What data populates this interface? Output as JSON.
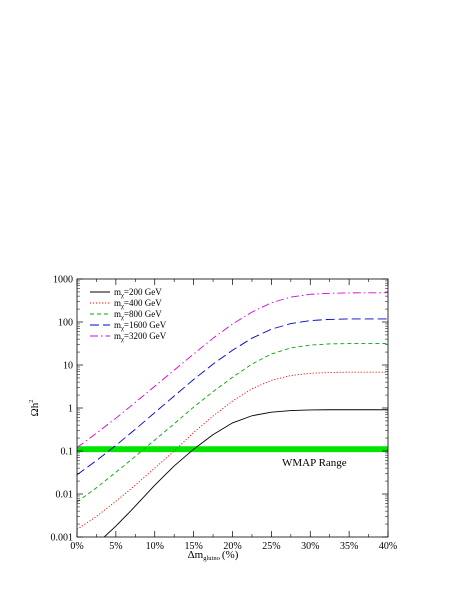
{
  "chart_data": {
    "type": "line",
    "xlabel": "Δm",
    "xlabel_subscript": "gluino",
    "xlabel_unit": "(%)",
    "ylabel": "Ωh",
    "ylabel_superscript": "2",
    "y_scale": "log",
    "xlim": [
      0,
      40
    ],
    "ylim": [
      0.001,
      1000
    ],
    "x_ticks": [
      0,
      5,
      10,
      15,
      20,
      25,
      30,
      35,
      40
    ],
    "x_tick_labels": [
      "0%",
      "5%",
      "10%",
      "15%",
      "20%",
      "25%",
      "30%",
      "35%",
      "40%"
    ],
    "y_ticks": [
      0.001,
      0.01,
      0.1,
      1,
      10,
      100,
      1000
    ],
    "y_tick_labels": [
      "0.001",
      "0.01",
      "0.1",
      "1",
      "10",
      "100",
      "1000"
    ],
    "grid": false,
    "legend_position": "top-left",
    "band": {
      "label": "WMAP Range",
      "ymin": 0.094,
      "ymax": 0.129,
      "color": "#00e600"
    },
    "series": [
      {
        "name": "m",
        "sub": "χ",
        "suffix": "=200 GeV",
        "color": "#000000",
        "dash": "solid",
        "x": [
          3.5,
          5,
          7,
          10,
          12.5,
          15,
          17.5,
          20,
          22.5,
          25,
          27.5,
          30,
          32.5,
          35,
          40
        ],
        "y": [
          0.001,
          0.0018,
          0.0042,
          0.016,
          0.045,
          0.11,
          0.24,
          0.45,
          0.66,
          0.8,
          0.87,
          0.9,
          0.91,
          0.91,
          0.91
        ]
      },
      {
        "name": "m",
        "sub": "χ",
        "suffix": "=400 GeV",
        "color": "#ff0000",
        "dash": "dot",
        "x": [
          0,
          2.5,
          5,
          7.5,
          10,
          12.5,
          15,
          17.5,
          20,
          22.5,
          25,
          27.5,
          30,
          32.5,
          35,
          40
        ],
        "y": [
          0.0015,
          0.003,
          0.0068,
          0.016,
          0.04,
          0.1,
          0.27,
          0.65,
          1.45,
          2.8,
          4.4,
          5.7,
          6.4,
          6.7,
          6.8,
          6.8
        ]
      },
      {
        "name": "m",
        "sub": "χ",
        "suffix": "=800 GeV",
        "color": "#00aa00",
        "dash": "dash",
        "x": [
          0,
          2.5,
          5,
          7.5,
          10,
          12.5,
          15,
          17.5,
          20,
          22.5,
          25,
          27.5,
          30,
          32.5,
          35,
          40
        ],
        "y": [
          0.0065,
          0.014,
          0.032,
          0.075,
          0.18,
          0.43,
          1.05,
          2.4,
          5.2,
          10.5,
          18,
          25,
          29,
          31,
          31.5,
          31.5
        ]
      },
      {
        "name": "m",
        "sub": "χ",
        "suffix": "=1600 GeV",
        "color": "#0000cc",
        "dash": "longdash",
        "x": [
          0,
          2.5,
          5,
          7.5,
          10,
          12.5,
          15,
          17.5,
          20,
          22.5,
          25,
          27.5,
          30,
          32.5,
          35,
          40
        ],
        "y": [
          0.028,
          0.06,
          0.135,
          0.32,
          0.78,
          1.9,
          4.6,
          10.5,
          22,
          42,
          68,
          92,
          108,
          115,
          118,
          118
        ]
      },
      {
        "name": "m",
        "sub": "χ",
        "suffix": "=3200 GeV",
        "color": "#dd00dd",
        "dash": "dashdot",
        "x": [
          0,
          2.5,
          5,
          7.5,
          10,
          12.5,
          15,
          17.5,
          20,
          22.5,
          25,
          27.5,
          30,
          32.5,
          35,
          40
        ],
        "y": [
          0.12,
          0.26,
          0.58,
          1.35,
          3.2,
          7.6,
          18,
          42,
          90,
          170,
          280,
          380,
          440,
          465,
          475,
          480
        ]
      }
    ]
  }
}
